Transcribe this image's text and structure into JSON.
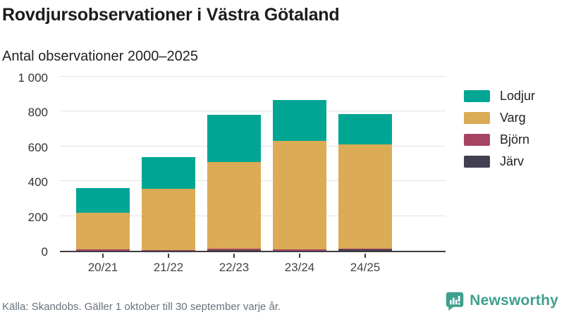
{
  "header": {
    "title": "Rovdjursobservationer i Västra Götaland",
    "subtitle": "Antal observationer 2000–2025"
  },
  "chart_data": {
    "type": "bar",
    "stacked": true,
    "title": "Rovdjursobservationer i Västra Götaland",
    "subtitle": "Antal observationer 2000–2025",
    "categories": [
      "20/21",
      "21/22",
      "22/23",
      "23/24",
      "24/25"
    ],
    "series": [
      {
        "name": "Lodjur",
        "color": "#00a693",
        "values": [
          140,
          185,
          270,
          235,
          175
        ]
      },
      {
        "name": "Varg",
        "color": "#dbab55",
        "values": [
          212,
          351,
          498,
          622,
          598
        ]
      },
      {
        "name": "Björn",
        "color": "#a64563",
        "values": [
          6,
          3,
          8,
          6,
          2
        ]
      },
      {
        "name": "Järv",
        "color": "#413f50",
        "values": [
          2,
          1,
          4,
          2,
          10
        ]
      }
    ],
    "stack_order_bottom_to_top": [
      "Järv",
      "Björn",
      "Varg",
      "Lodjur"
    ],
    "approx_totals": [
      360,
      540,
      780,
      865,
      785
    ],
    "xlabel": "",
    "ylabel": "",
    "ylim": [
      0,
      1000
    ],
    "yticks": [
      {
        "value": 0,
        "label": "0"
      },
      {
        "value": 200,
        "label": "200"
      },
      {
        "value": 400,
        "label": "400"
      },
      {
        "value": 600,
        "label": "600"
      },
      {
        "value": 800,
        "label": "800"
      },
      {
        "value": 1000,
        "label": "1 000"
      }
    ],
    "grid": "horizontal",
    "legend_position": "right"
  },
  "footer": {
    "source": "Källa: Skandobs. Gäller 1 oktober till 30 september varje år.",
    "brand": "Newsworthy",
    "brand_color": "#3fa08d"
  }
}
